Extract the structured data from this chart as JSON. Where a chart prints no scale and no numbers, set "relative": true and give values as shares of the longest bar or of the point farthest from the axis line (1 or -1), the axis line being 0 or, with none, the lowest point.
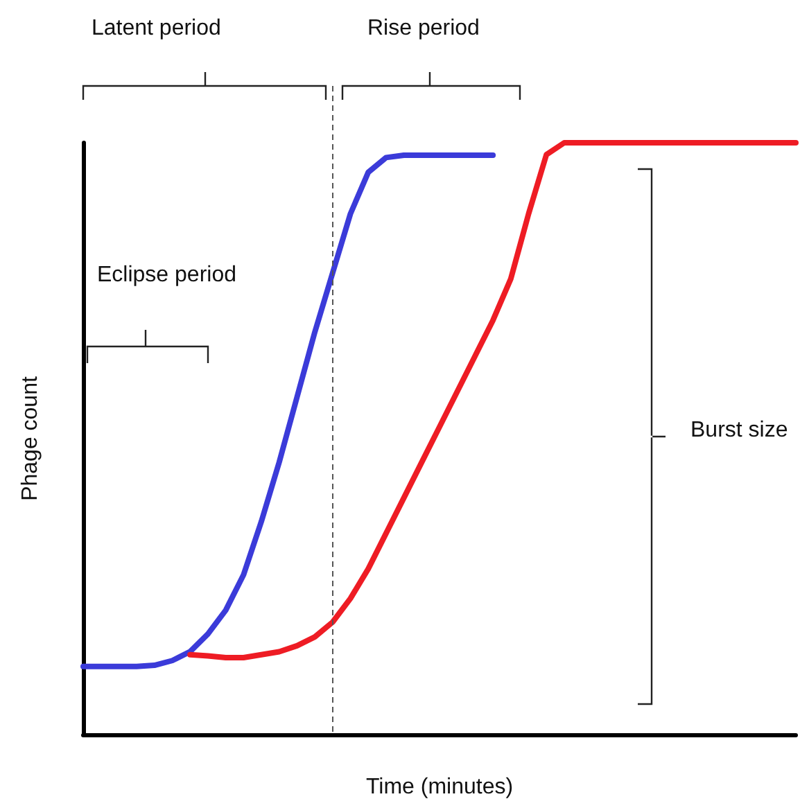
{
  "chart_data": {
    "type": "line",
    "relative": true,
    "xlabel": "Time (minutes)",
    "ylabel": "Phage count",
    "categories": [
      null,
      null,
      null,
      null,
      null,
      null,
      null,
      null,
      null,
      null,
      null,
      null,
      null,
      null,
      null,
      null,
      null,
      null,
      null,
      null,
      null,
      null,
      null,
      null,
      null,
      null,
      null,
      null,
      null,
      null,
      null,
      null,
      null,
      null,
      null,
      null,
      null,
      null,
      null,
      null,
      null
    ],
    "series": [
      {
        "color": "#3b3bd9",
        "values": [
          0.115,
          0.115,
          0.115,
          0.115,
          0.117,
          0.125,
          0.14,
          0.17,
          0.21,
          0.27,
          0.36,
          0.46,
          0.57,
          0.68,
          0.78,
          0.88,
          0.95,
          0.975,
          0.979,
          0.979,
          0.979,
          0.979,
          0.979,
          0.979,
          null,
          null,
          null,
          null,
          null,
          null,
          null,
          null,
          null,
          null,
          null,
          null,
          null,
          null,
          null,
          null,
          null
        ]
      },
      {
        "color": "#ee1c24",
        "values": [
          null,
          null,
          null,
          null,
          null,
          null,
          0.135,
          0.133,
          0.13,
          0.13,
          0.135,
          0.14,
          0.15,
          0.165,
          0.19,
          0.23,
          0.28,
          0.34,
          0.4,
          0.46,
          0.52,
          0.58,
          0.64,
          0.7,
          0.77,
          0.88,
          0.98,
          1,
          1,
          1,
          1,
          1,
          1,
          1,
          1,
          1,
          1,
          1,
          1,
          1,
          1
        ]
      }
    ],
    "annotations": [
      "Latent period",
      "Rise period",
      "Eclipse period",
      "Burst size"
    ],
    "marker": "none",
    "line_style": "solid"
  }
}
